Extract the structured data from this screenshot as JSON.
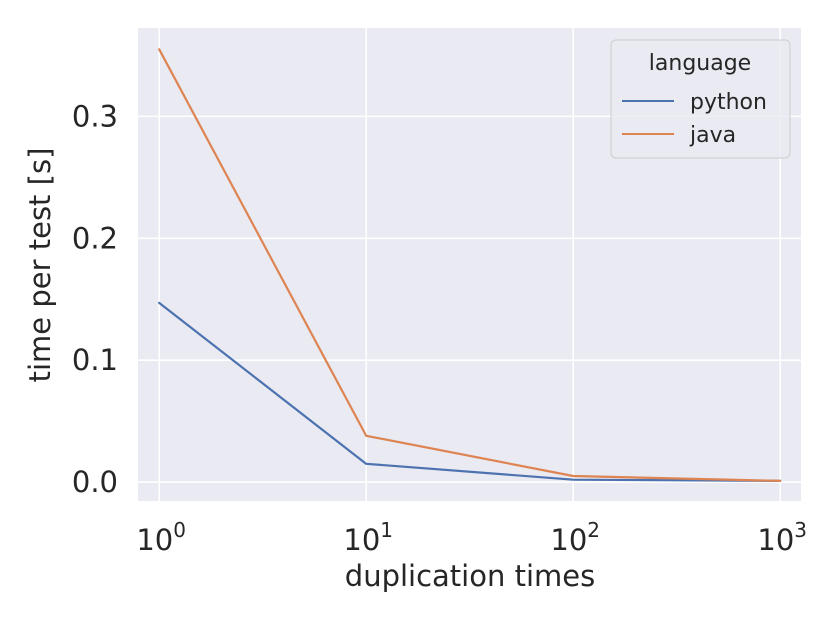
{
  "chart_data": {
    "type": "line",
    "xlabel": "duplication times",
    "ylabel": "time per test [s]",
    "x_scale": "log",
    "x": [
      1,
      10,
      100,
      1000
    ],
    "x_tick_labels": [
      {
        "base": "10",
        "exp": "0"
      },
      {
        "base": "10",
        "exp": "1"
      },
      {
        "base": "10",
        "exp": "2"
      },
      {
        "base": "10",
        "exp": "3"
      }
    ],
    "y_ticks": [
      "0.0",
      "0.1",
      "0.2",
      "0.3"
    ],
    "y_tick_values": [
      0.0,
      0.1,
      0.2,
      0.3
    ],
    "xlim": [
      0.79,
      1260
    ],
    "ylim": [
      -0.0155,
      0.3725
    ],
    "grid": true,
    "legend": {
      "title": "language",
      "position": "top-right"
    },
    "series": [
      {
        "name": "python",
        "color": "#4c72b0",
        "values": [
          0.147,
          0.015,
          0.002,
          0.001
        ]
      },
      {
        "name": "java",
        "color": "#dd8452",
        "values": [
          0.355,
          0.038,
          0.005,
          0.001
        ]
      }
    ]
  }
}
